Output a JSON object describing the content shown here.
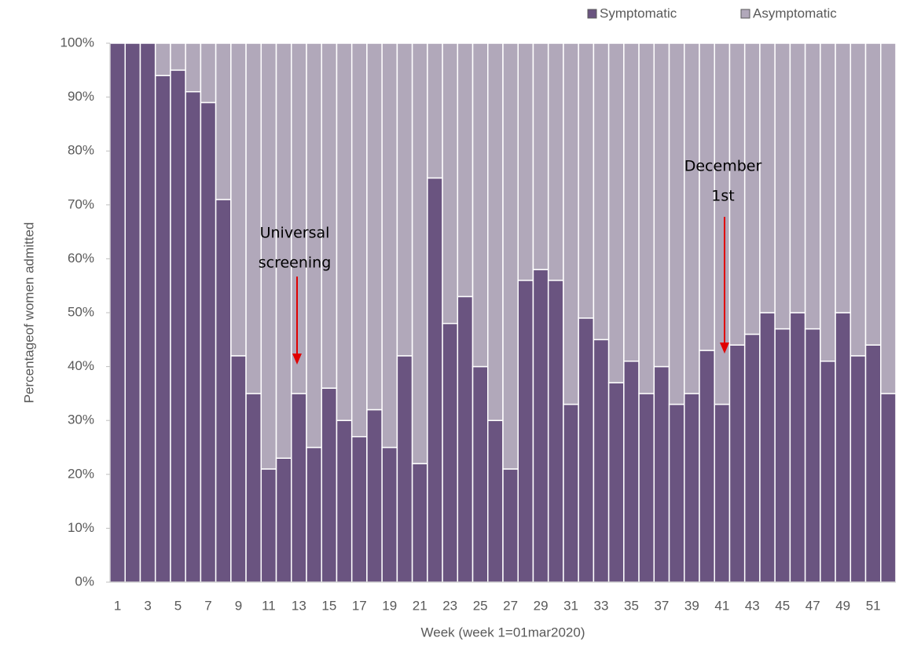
{
  "chart_data": {
    "type": "stacked_bar_100",
    "x_label": "Week (week 1=01mar2020)",
    "y_label": "Percentageof women admitted",
    "categories": [
      1,
      null,
      3,
      null,
      5,
      null,
      7,
      null,
      9,
      null,
      11,
      null,
      13,
      null,
      15,
      null,
      17,
      null,
      19,
      null,
      21,
      null,
      23,
      null,
      25,
      null,
      27,
      null,
      29,
      null,
      31,
      null,
      33,
      null,
      35,
      null,
      37,
      null,
      39,
      null,
      41,
      null,
      43,
      null,
      45,
      null,
      47,
      null,
      49,
      null,
      51,
      null
    ],
    "series": [
      {
        "name": "Symptomatic",
        "color": "#6a5480",
        "values": [
          100,
          100,
          100,
          94,
          95,
          91,
          89,
          71,
          42,
          35,
          21,
          23,
          35,
          25,
          36,
          30,
          27,
          32,
          25,
          42,
          22,
          75,
          48,
          53,
          40,
          30,
          21,
          56,
          58,
          56,
          33,
          49,
          45,
          37,
          41,
          35,
          40,
          33,
          35,
          43,
          33,
          44,
          46,
          50,
          47,
          50,
          47,
          41,
          50,
          42,
          44,
          35
        ]
      },
      {
        "name": "Asymptomatic",
        "color": "#b1a8ba",
        "values": [
          0,
          0,
          0,
          6,
          5,
          9,
          11,
          29,
          58,
          65,
          79,
          77,
          65,
          75,
          64,
          70,
          73,
          68,
          75,
          58,
          78,
          25,
          52,
          47,
          60,
          70,
          79,
          44,
          42,
          44,
          67,
          51,
          55,
          63,
          59,
          65,
          60,
          67,
          65,
          57,
          67,
          56,
          54,
          50,
          53,
          50,
          53,
          59,
          50,
          58,
          56,
          65
        ]
      }
    ],
    "ylim": [
      0,
      100
    ],
    "yticks": [
      {
        "value": 0,
        "label": "0%"
      },
      {
        "value": 10,
        "label": "10%"
      },
      {
        "value": 20,
        "label": "20%"
      },
      {
        "value": 30,
        "label": "30%"
      },
      {
        "value": 40,
        "label": "40%"
      },
      {
        "value": 50,
        "label": "50%"
      },
      {
        "value": 60,
        "label": "60%"
      },
      {
        "value": 70,
        "label": "70%"
      },
      {
        "value": 80,
        "label": "80%"
      },
      {
        "value": 90,
        "label": "90%"
      },
      {
        "value": 100,
        "label": "100%"
      }
    ],
    "annotations": [
      {
        "lines": [
          "Universal",
          "screening"
        ]
      },
      {
        "lines": [
          "December",
          "1st"
        ]
      }
    ]
  }
}
